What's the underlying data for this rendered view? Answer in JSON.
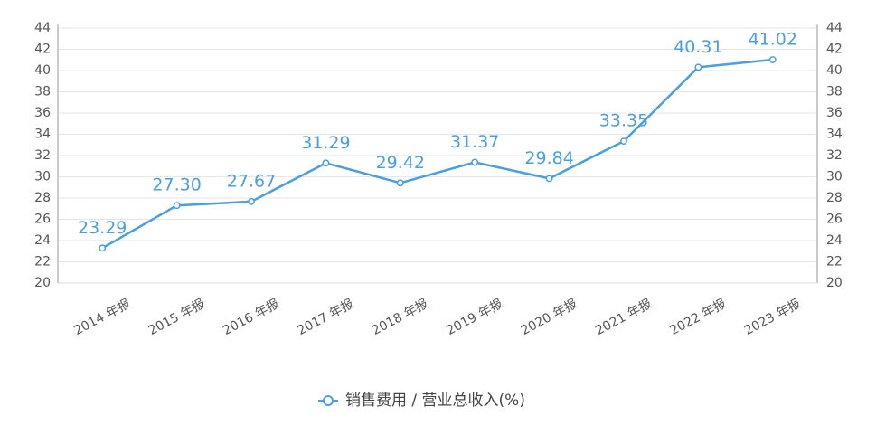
{
  "chart_data": {
    "type": "line",
    "categories": [
      "2014 年报",
      "2015 年报",
      "2016 年报",
      "2017 年报",
      "2018 年报",
      "2019 年报",
      "2020 年报",
      "2021 年报",
      "2022 年报",
      "2023 年报"
    ],
    "series": [
      {
        "name": "销售费用 / 营业总收入(%)",
        "color": "#4a9fe0",
        "values": [
          23.29,
          27.3,
          27.67,
          31.29,
          29.42,
          31.37,
          29.84,
          33.35,
          40.31,
          41.02
        ],
        "value_labels": [
          "23.29",
          "27.30",
          "27.67",
          "31.29",
          "29.42",
          "31.37",
          "29.84",
          "33.35",
          "40.31",
          "41.02"
        ]
      }
    ],
    "ylim": [
      20,
      44
    ],
    "yticks": [
      20,
      22,
      24,
      26,
      28,
      30,
      32,
      34,
      36,
      38,
      40,
      42,
      44
    ],
    "y2lim": [
      20,
      44
    ],
    "y2ticks": [
      20,
      22,
      24,
      26,
      28,
      30,
      32,
      34,
      36,
      38,
      40,
      42,
      44
    ],
    "grid": true,
    "legend": "bottom"
  }
}
